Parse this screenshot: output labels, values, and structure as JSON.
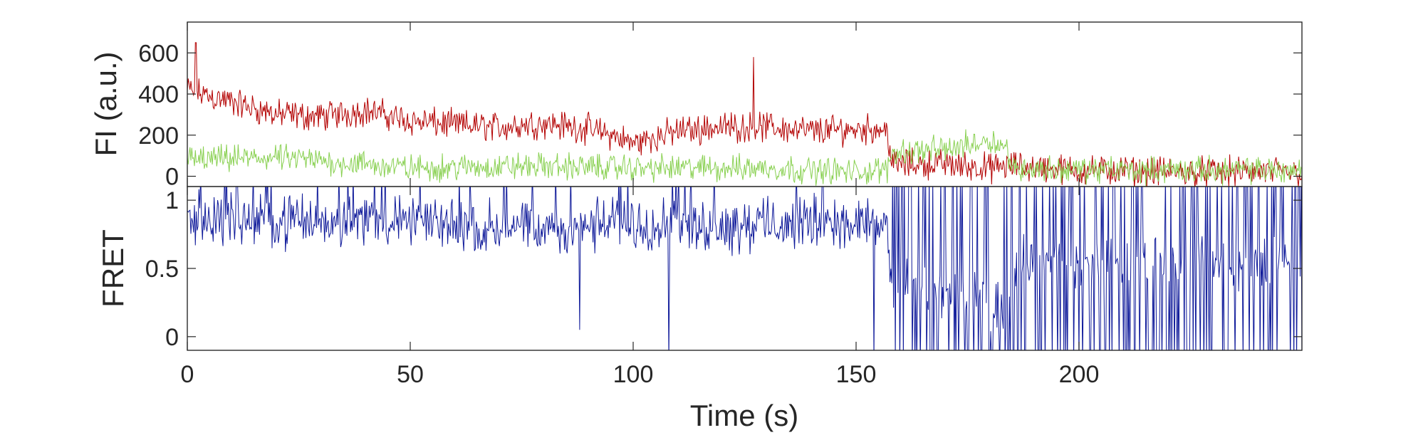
{
  "chart_data": [
    {
      "type": "line",
      "title": "",
      "ylabel": "FI (a.u.)",
      "xlim": [
        0,
        250
      ],
      "ylim": [
        -50,
        750
      ],
      "yticks": [
        0,
        200,
        400,
        600
      ],
      "ytick_labels": [
        "0",
        "200",
        "400",
        "600"
      ],
      "grid": false,
      "series": [
        {
          "color": "#b30000",
          "trend": [
            [
              0,
              420
            ],
            [
              10,
              360
            ],
            [
              20,
              300
            ],
            [
              30,
              290
            ],
            [
              40,
              320
            ],
            [
              50,
              270
            ],
            [
              60,
              250
            ],
            [
              70,
              240
            ],
            [
              80,
              260
            ],
            [
              90,
              230
            ],
            [
              95,
              200
            ],
            [
              100,
              160
            ],
            [
              110,
              220
            ],
            [
              120,
              240
            ],
            [
              130,
              240
            ],
            [
              140,
              220
            ],
            [
              150,
              230
            ],
            [
              157,
              230
            ],
            [
              158,
              60
            ],
            [
              170,
              60
            ],
            [
              180,
              40
            ],
            [
              185,
              50
            ],
            [
              200,
              30
            ],
            [
              220,
              20
            ],
            [
              250,
              20
            ]
          ],
          "noise": 45
        },
        {
          "color": "#88d050",
          "trend": [
            [
              0,
              80
            ],
            [
              20,
              90
            ],
            [
              50,
              40
            ],
            [
              80,
              50
            ],
            [
              100,
              40
            ],
            [
              130,
              40
            ],
            [
              150,
              20
            ],
            [
              157,
              30
            ],
            [
              158,
              120
            ],
            [
              170,
              130
            ],
            [
              180,
              180
            ],
            [
              184,
              130
            ],
            [
              185,
              40
            ],
            [
              200,
              30
            ],
            [
              250,
              30
            ]
          ],
          "noise": 40
        }
      ]
    },
    {
      "type": "line",
      "title": "",
      "xlabel": "Time (s)",
      "ylabel": "FRET",
      "xlim": [
        0,
        250
      ],
      "ylim": [
        -0.1,
        1.1
      ],
      "xticks": [
        0,
        50,
        100,
        150,
        200
      ],
      "xtick_labels": [
        "0",
        "50",
        "100",
        "150",
        "200"
      ],
      "yticks": [
        0,
        0.5,
        1
      ],
      "ytick_labels": [
        "0",
        "0.5",
        "1"
      ],
      "grid": false,
      "series": [
        {
          "color": "#0f1a9a",
          "trend": [
            [
              0,
              0.87
            ],
            [
              20,
              0.85
            ],
            [
              40,
              0.86
            ],
            [
              60,
              0.82
            ],
            [
              80,
              0.78
            ],
            [
              100,
              0.84
            ],
            [
              120,
              0.82
            ],
            [
              140,
              0.84
            ],
            [
              157,
              0.82
            ],
            [
              158,
              0.35
            ],
            [
              170,
              0.3
            ],
            [
              180,
              0.25
            ],
            [
              184,
              0.2
            ],
            [
              185,
              0.55
            ],
            [
              200,
              0.55
            ],
            [
              250,
              0.55
            ]
          ],
          "noise": 0.12
        }
      ],
      "annotations": "sharp downward spikes near t=88, t=108 and t=154"
    }
  ]
}
